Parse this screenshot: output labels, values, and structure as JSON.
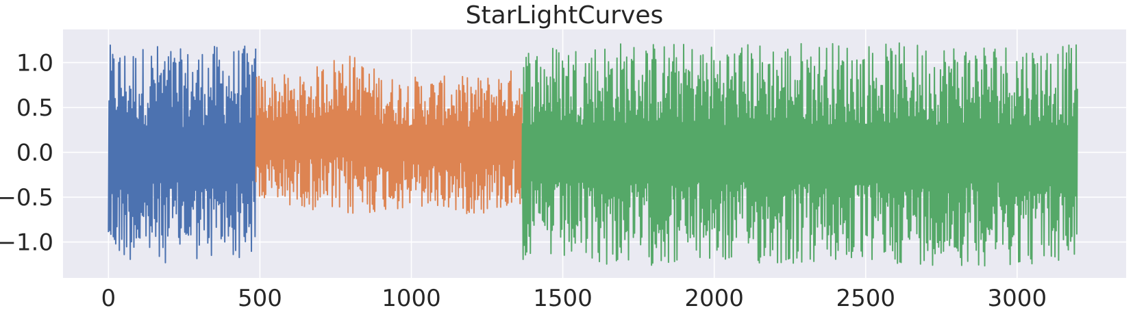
{
  "chart_data": {
    "type": "line",
    "title": "StarLightCurves",
    "xlabel": "",
    "ylabel": "",
    "xlim": [
      -150,
      3360
    ],
    "ylim": [
      -1.4,
      1.37
    ],
    "xticks": [
      0,
      500,
      1000,
      1500,
      2000,
      2500,
      3000
    ],
    "xtick_labels": [
      "0",
      "500",
      "1000",
      "1500",
      "2000",
      "2500",
      "3000"
    ],
    "yticks": [
      -1.0,
      -0.5,
      0.0,
      0.5,
      1.0
    ],
    "ytick_labels": [
      "−1.0",
      "−0.5",
      "0.0",
      "0.5",
      "1.0"
    ],
    "grid": true,
    "background_color": "#eaeaf2",
    "series": [
      {
        "color": "#4c72b0",
        "x_range": [
          0,
          487
        ],
        "envelope": {
          "upper": [
            1.2,
            1.18,
            1.22,
            1.15,
            1.2,
            1.18,
            1.2
          ],
          "lower": [
            -1.2,
            -1.22,
            -1.25,
            -1.2,
            -1.22,
            -1.2,
            -1.18
          ]
        }
      },
      {
        "color": "#dd8452",
        "x_range": [
          487,
          1365
        ],
        "envelope": {
          "upper": [
            0.9,
            0.85,
            1.15,
            0.85,
            0.85,
            0.85,
            0.95
          ],
          "lower": [
            -0.6,
            -0.6,
            -0.75,
            -0.65,
            -0.65,
            -0.7,
            -0.6
          ]
        }
      },
      {
        "color": "#55a868",
        "x_range": [
          1365,
          3200
        ],
        "envelope": {
          "upper": [
            1.2,
            1.25,
            1.22,
            1.25,
            1.22,
            1.25,
            1.2
          ],
          "lower": [
            -1.22,
            -1.27,
            -1.25,
            -1.27,
            -1.25,
            -1.27,
            -1.25
          ]
        }
      }
    ]
  }
}
